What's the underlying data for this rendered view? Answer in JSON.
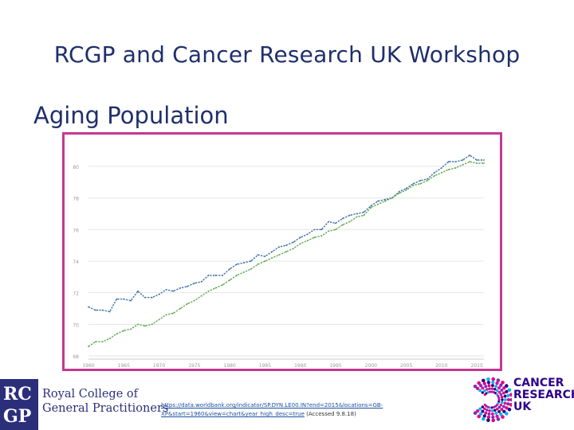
{
  "slide": {
    "title": "RCGP and Cancer Research UK Workshop",
    "subtitle": "Aging Population"
  },
  "source": {
    "link": "https://data.worldbank.org/indicator/SP.DYN.LE00.IN?end=2015&locations=GB-XP&start=1960&view=chart&year_high_desc=true",
    "accessed": "(Accessed 9.8.18)"
  },
  "logos": {
    "rcgp_box_letters": [
      "RC",
      "GP"
    ],
    "rcgp_name_line1": "Royal College of",
    "rcgp_name_line2": "General Practitioners",
    "cruk_line1": "CANCER",
    "cruk_line2": "RESEARCH",
    "cruk_line3": "UK"
  },
  "colors": {
    "title": "#1f2f6b",
    "frame": "#c4398f",
    "series_blue": "#3a6fa8",
    "series_green": "#5aa84a"
  },
  "chart_data": {
    "type": "line",
    "x_ticks": [
      "1960",
      "1965",
      "1970",
      "1975",
      "1980",
      "1985",
      "1990",
      "1995",
      "2000",
      "2005",
      "2010",
      "2015"
    ],
    "y_ticks": [
      "68",
      "70",
      "72",
      "74",
      "76",
      "78",
      "80"
    ],
    "ylim": [
      68,
      80.5
    ],
    "xlim": [
      1960,
      2016
    ],
    "grid": true,
    "series": [
      {
        "color": "#3a6fa8",
        "x": [
          1960,
          1961,
          1962,
          1963,
          1964,
          1965,
          1966,
          1967,
          1968,
          1969,
          1970,
          1971,
          1972,
          1973,
          1974,
          1975,
          1976,
          1977,
          1978,
          1979,
          1980,
          1981,
          1982,
          1983,
          1984,
          1985,
          1986,
          1987,
          1988,
          1989,
          1990,
          1991,
          1992,
          1993,
          1994,
          1995,
          1996,
          1997,
          1998,
          1999,
          2000,
          2001,
          2002,
          2003,
          2004,
          2005,
          2006,
          2007,
          2008,
          2009,
          2010,
          2011,
          2012,
          2013,
          2014,
          2015,
          2016
        ],
        "values": [
          71.1,
          70.9,
          70.9,
          70.8,
          71.6,
          71.6,
          71.5,
          72.1,
          71.7,
          71.7,
          71.9,
          72.2,
          72.1,
          72.3,
          72.4,
          72.6,
          72.7,
          73.1,
          73.1,
          73.1,
          73.5,
          73.8,
          73.9,
          74.0,
          74.4,
          74.3,
          74.6,
          74.9,
          75.0,
          75.2,
          75.5,
          75.7,
          76.0,
          76.0,
          76.5,
          76.4,
          76.7,
          76.9,
          77.0,
          77.1,
          77.5,
          77.8,
          77.9,
          78.0,
          78.4,
          78.6,
          78.9,
          79.1,
          79.2,
          79.6,
          79.9,
          80.3,
          80.3,
          80.4,
          80.7,
          80.4,
          80.4
        ]
      },
      {
        "color": "#5aa84a",
        "x": [
          1960,
          1961,
          1962,
          1963,
          1964,
          1965,
          1966,
          1967,
          1968,
          1969,
          1970,
          1971,
          1972,
          1973,
          1974,
          1975,
          1976,
          1977,
          1978,
          1979,
          1980,
          1981,
          1982,
          1983,
          1984,
          1985,
          1986,
          1987,
          1988,
          1989,
          1990,
          1991,
          1992,
          1993,
          1994,
          1995,
          1996,
          1997,
          1998,
          1999,
          2000,
          2001,
          2002,
          2003,
          2004,
          2005,
          2006,
          2007,
          2008,
          2009,
          2010,
          2011,
          2012,
          2013,
          2014,
          2015,
          2016
        ],
        "values": [
          68.6,
          68.9,
          68.9,
          69.1,
          69.4,
          69.6,
          69.7,
          70.0,
          69.9,
          70.0,
          70.3,
          70.6,
          70.7,
          71.0,
          71.3,
          71.5,
          71.8,
          72.1,
          72.3,
          72.5,
          72.8,
          73.1,
          73.3,
          73.5,
          73.8,
          74.0,
          74.2,
          74.4,
          74.6,
          74.8,
          75.1,
          75.3,
          75.5,
          75.6,
          75.9,
          76.0,
          76.3,
          76.5,
          76.8,
          76.9,
          77.4,
          77.6,
          77.8,
          78.0,
          78.3,
          78.5,
          78.8,
          78.9,
          79.1,
          79.4,
          79.6,
          79.8,
          79.9,
          80.1,
          80.3,
          80.2,
          80.2
        ]
      }
    ]
  }
}
